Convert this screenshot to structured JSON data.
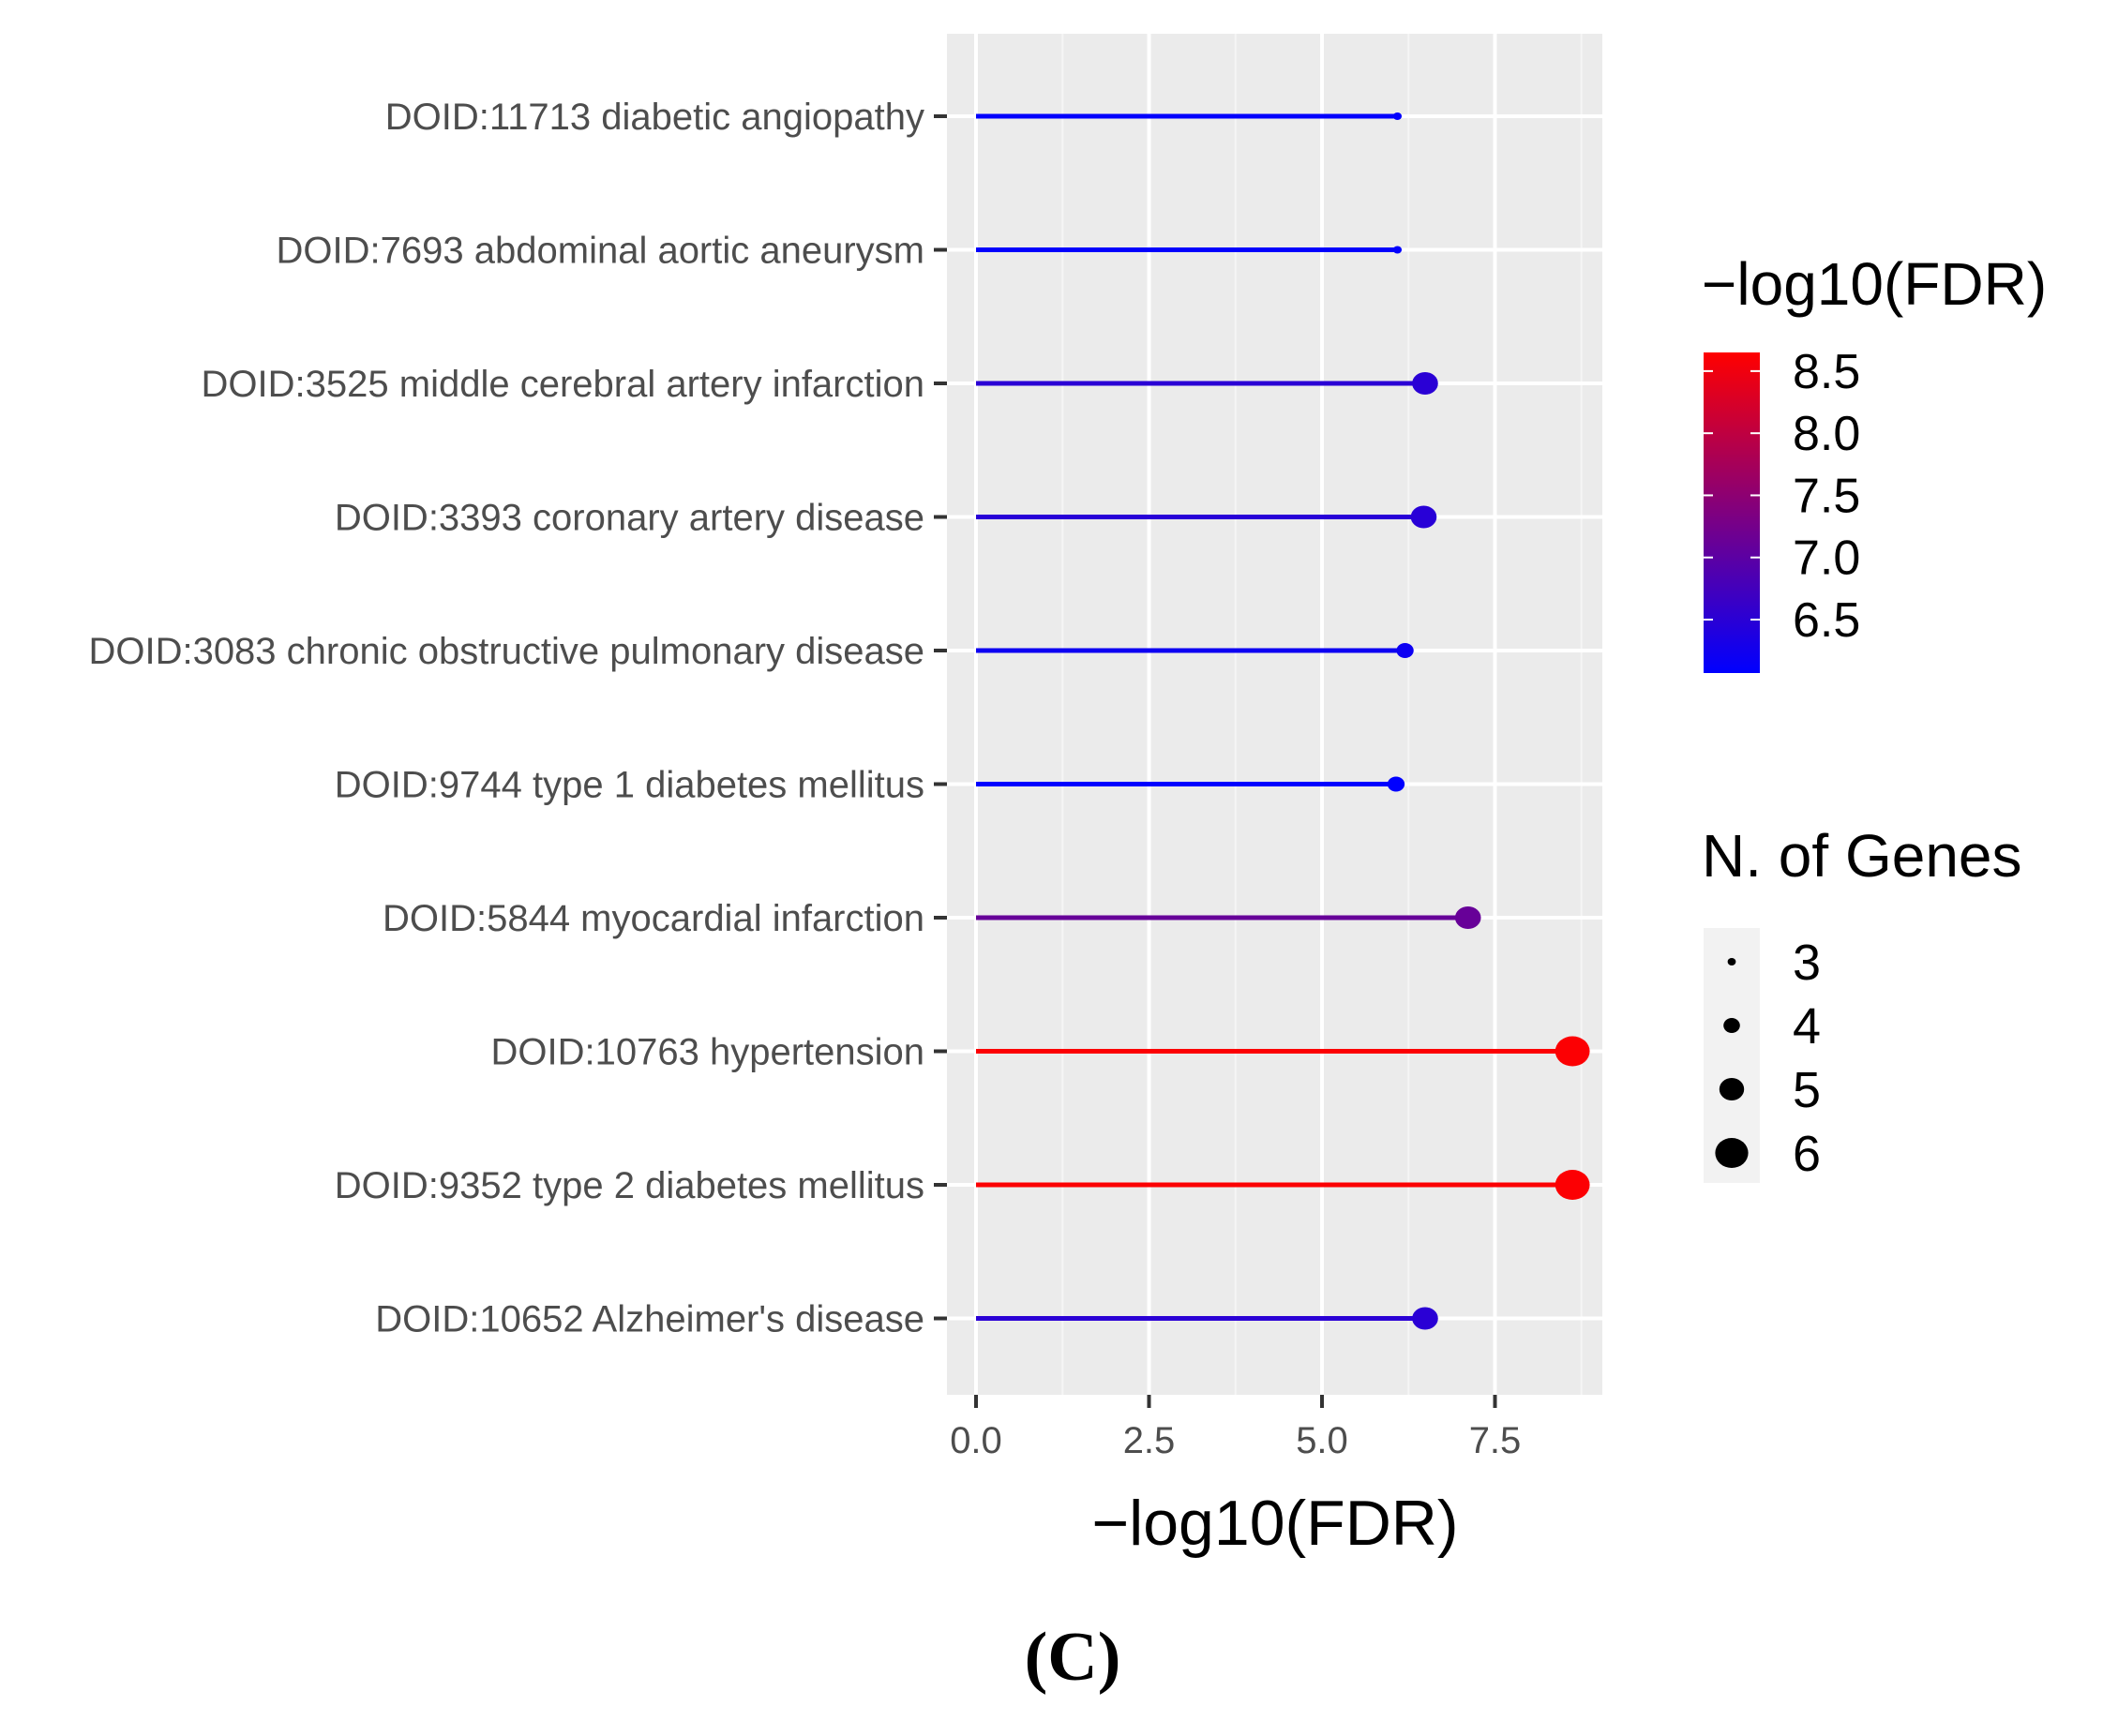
{
  "chart_data": {
    "type": "lollipop",
    "title": "",
    "xlabel": "−log10(FDR)",
    "ylabel": "",
    "xlim": [
      -0.45,
      9.0
    ],
    "xticks": [
      0.0,
      2.5,
      5.0,
      7.5
    ],
    "xtick_labels": [
      "0.0",
      "2.5",
      "5.0",
      "7.5"
    ],
    "grid": true,
    "categories": [
      "DOID:11713 diabetic angiopathy",
      "DOID:7693 abdominal aortic aneurysm",
      "DOID:3525 middle cerebral artery infarction",
      "DOID:3393 coronary artery disease",
      "DOID:3083 chronic obstructive pulmonary disease",
      "DOID:9744 type 1 diabetes mellitus",
      "DOID:5844 myocardial infarction",
      "DOID:10763 hypertension",
      "DOID:9352 type 2 diabetes mellitus",
      "DOID:10652 Alzheimer's disease"
    ],
    "values": [
      6.09,
      6.09,
      6.49,
      6.47,
      6.2,
      6.07,
      7.11,
      8.62,
      8.62,
      6.49
    ],
    "n_genes": [
      3,
      3,
      5,
      5,
      4,
      4,
      5,
      6,
      6,
      5
    ],
    "color_legend": {
      "title": "−log10(FDR)",
      "range": [
        6.07,
        8.65
      ],
      "ticks": [
        8.5,
        8.0,
        7.5,
        7.0,
        6.5
      ],
      "tick_labels": [
        "8.5",
        "8.0",
        "7.5",
        "7.0",
        "6.5"
      ],
      "low_color": "#0000ff",
      "high_color": "#ff0000"
    },
    "size_legend": {
      "title": "N. of Genes",
      "values": [
        3,
        4,
        5,
        6
      ],
      "labels": [
        "3",
        "4",
        "5",
        "6"
      ]
    },
    "panel_label": "(C)"
  }
}
